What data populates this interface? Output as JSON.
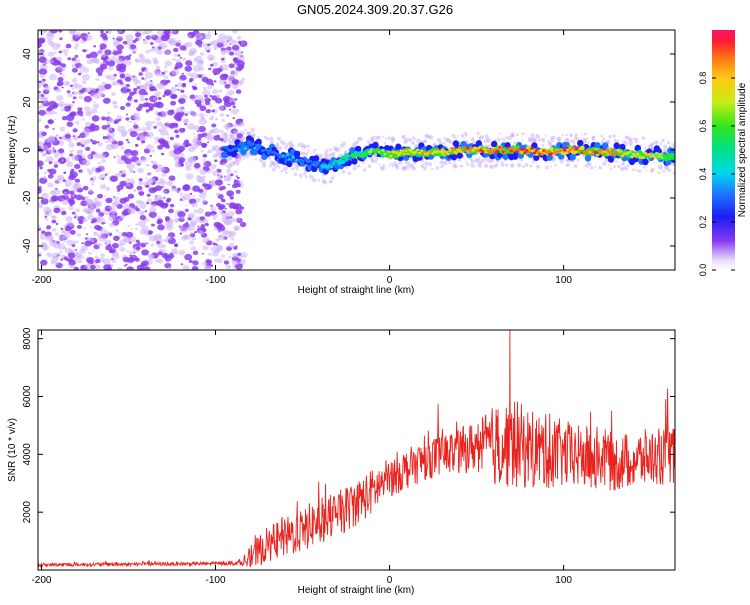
{
  "title": "GN05.2024.309.20.37.G26",
  "colors": {
    "axis": "#000000",
    "snr_line": "#e8231e",
    "noise": "#8a3cf0",
    "noise_light": "#cdb0f7"
  },
  "chart_data": [
    {
      "type": "heatmap",
      "xlabel": "Height of straight line (km)",
      "ylabel": "Frequency (Hz)",
      "xlim": [
        -202,
        164
      ],
      "ylim": [
        -50,
        50
      ],
      "xticks": [
        -200,
        -100,
        0,
        100
      ],
      "yticks": [
        -40,
        -20,
        0,
        20,
        40
      ],
      "colorbar": {
        "label": "Normalized spectral amplitude",
        "range": [
          0,
          1
        ],
        "ticks": [
          "0.0",
          "0.2",
          "0.4",
          "0.6",
          "0.8"
        ],
        "tick_values": [
          0.0,
          0.2,
          0.4,
          0.6,
          0.8
        ]
      },
      "noise_region_x": [
        -202,
        -87
      ],
      "frequency_track": {
        "x": [
          -95,
          -88,
          -80,
          -72,
          -65,
          -58,
          -50,
          -42,
          -36,
          -30,
          -24,
          -18,
          -12,
          -5,
          0,
          10,
          20,
          30,
          40,
          50,
          60,
          70,
          80,
          90,
          100,
          110,
          120,
          130,
          140,
          150,
          160,
          164
        ],
        "freq": [
          0,
          1,
          2,
          0,
          -2,
          -3,
          -4,
          -6,
          -7,
          -5,
          -3,
          -2,
          -1,
          -1,
          -2,
          -1,
          -1,
          -1,
          0,
          0,
          0,
          0,
          0,
          -1,
          0,
          0,
          -1,
          -1,
          -2,
          -2,
          -3,
          -3
        ],
        "amplitude": [
          0.25,
          0.3,
          0.35,
          0.3,
          0.3,
          0.35,
          0.3,
          0.3,
          0.4,
          0.45,
          0.5,
          0.55,
          0.6,
          0.65,
          0.7,
          0.75,
          0.8,
          0.8,
          0.85,
          0.9,
          0.9,
          0.92,
          0.95,
          0.9,
          0.92,
          0.9,
          0.85,
          0.8,
          0.75,
          0.7,
          0.65,
          0.6
        ]
      }
    },
    {
      "type": "line",
      "xlabel": "Height of straight line (km)",
      "ylabel": "SNR (10 * v/v)",
      "xlim": [
        -202,
        164
      ],
      "ylim": [
        0,
        8300
      ],
      "xticks": [
        -200,
        -100,
        0,
        100
      ],
      "yticks": [
        2000,
        4000,
        6000,
        8000
      ],
      "series": [
        {
          "name": "SNR",
          "envelope_x": [
            -202,
            -150,
            -100,
            -85,
            -78,
            -70,
            -60,
            -50,
            -40,
            -30,
            -20,
            -10,
            0,
            10,
            20,
            30,
            40,
            50,
            60,
            70,
            80,
            90,
            100,
            110,
            120,
            130,
            140,
            150,
            160,
            164
          ],
          "envelope_y": [
            180,
            200,
            220,
            250,
            500,
            900,
            1100,
            1400,
            1700,
            1900,
            2300,
            2700,
            3200,
            3500,
            3800,
            4000,
            4100,
            4300,
            4300,
            4400,
            4200,
            4100,
            4000,
            3900,
            3900,
            3700,
            3800,
            3900,
            3900,
            4000
          ],
          "spread": [
            60,
            60,
            60,
            80,
            500,
            600,
            700,
            800,
            800,
            800,
            800,
            800,
            700,
            700,
            700,
            700,
            800,
            900,
            1400,
            1600,
            1400,
            1300,
            1200,
            1100,
            1100,
            1000,
            1000,
            1000,
            1000,
            1000
          ],
          "peak_x": 69,
          "peak_y": 8300
        }
      ]
    }
  ]
}
